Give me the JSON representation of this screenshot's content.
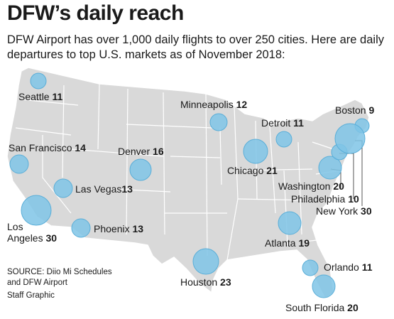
{
  "title": "DFW’s daily reach",
  "subtitle": "DFW Airport has over 1,000 daily flights to over 250 cities. Here are daily departures to top U.S. markets as of November 2018:",
  "source_line1": "SOURCE: Diio Mi Schedules",
  "source_line2": "and DFW Airport",
  "credit": "Staff Graphic",
  "colors": {
    "bubble": "#7fc4e6",
    "bubble_stroke": "#5aaed8",
    "land": "#d9d9d9",
    "border": "#ffffff"
  },
  "cities": [
    {
      "name": "Seattle",
      "value": "11"
    },
    {
      "name": "Minneapolis",
      "value": "12"
    },
    {
      "name": "Detroit",
      "value": "11"
    },
    {
      "name": "Boston",
      "value": "9"
    },
    {
      "name": "San Francisco",
      "value": "14"
    },
    {
      "name": "Denver",
      "value": "16"
    },
    {
      "name": "Chicago",
      "value": "21"
    },
    {
      "name": "Las Vegas",
      "value": "13"
    },
    {
      "name": "Washington",
      "value": "20"
    },
    {
      "name": "Philadelphia",
      "value": "10"
    },
    {
      "name": "New York",
      "value": "30"
    },
    {
      "name": "Los",
      "value": ""
    },
    {
      "name": "Angeles",
      "value": "30"
    },
    {
      "name": "Phoenix",
      "value": "13"
    },
    {
      "name": "Atlanta",
      "value": "19"
    },
    {
      "name": "Houston",
      "value": "23"
    },
    {
      "name": "Orlando",
      "value": "11"
    },
    {
      "name": "South Florida",
      "value": "20"
    }
  ]
}
